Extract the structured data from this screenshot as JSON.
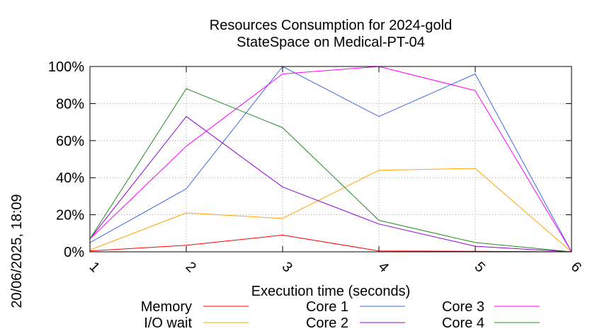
{
  "chart_data": {
    "type": "line",
    "title_line1": "Resources Consumption for 2024-gold",
    "title_line2": "StateSpace on Medical-PT-04",
    "xlabel": "Execution time (seconds)",
    "side_label": "20/06/2025, 18:09",
    "x": [
      1,
      2,
      3,
      4,
      5,
      6
    ],
    "xlim": [
      1,
      6
    ],
    "ylim": [
      0,
      100
    ],
    "yticks": [
      0,
      20,
      40,
      60,
      80,
      100
    ],
    "ytick_labels": [
      "0%",
      "20%",
      "40%",
      "60%",
      "80%",
      "100%"
    ],
    "xtick_labels": [
      "1",
      "2",
      "3",
      "4",
      "5",
      "6"
    ],
    "grid": true,
    "legend_placement": "bottom",
    "series": [
      {
        "name": "Memory",
        "color": "#ff0000",
        "values": [
          0.5,
          3.5,
          9,
          0.5,
          0.3,
          0
        ]
      },
      {
        "name": "I/O wait",
        "color": "#ffa500",
        "values": [
          1,
          21,
          18,
          44,
          45,
          0
        ]
      },
      {
        "name": "Core 1",
        "color": "#4169e1",
        "values": [
          5,
          34,
          100,
          73,
          96,
          0
        ]
      },
      {
        "name": "Core 2",
        "color": "#9400d3",
        "values": [
          7,
          73,
          35,
          15,
          3,
          0
        ]
      },
      {
        "name": "Core 3",
        "color": "#ff00ff",
        "values": [
          7,
          57,
          96,
          100,
          87,
          0
        ]
      },
      {
        "name": "Core 4",
        "color": "#228b22",
        "values": [
          7,
          88,
          67,
          17,
          5,
          0
        ]
      }
    ]
  }
}
